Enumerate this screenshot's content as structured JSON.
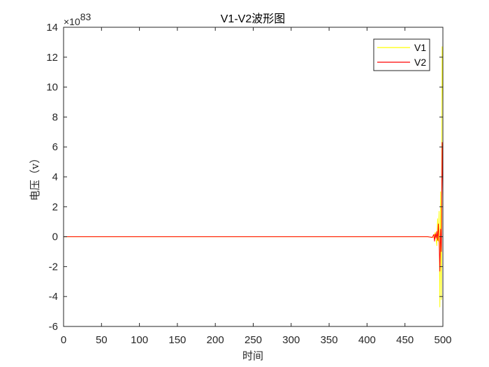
{
  "chart_data": {
    "type": "line",
    "title": "V1-V2波形图",
    "xlabel": "时间",
    "ylabel": "电压（v）",
    "exponent_prefix": "×10",
    "exponent_power": "83",
    "xlim": [
      0,
      500
    ],
    "ylim": [
      -6,
      14
    ],
    "xticks": [
      0,
      50,
      100,
      150,
      200,
      250,
      300,
      350,
      400,
      450,
      500
    ],
    "yticks": [
      -6,
      -4,
      -2,
      0,
      2,
      4,
      6,
      8,
      10,
      12,
      14
    ],
    "legend_position": "top-right",
    "series": [
      {
        "name": "V1",
        "color": "#FFFF00",
        "x": [
          0,
          480,
          488,
          490,
          492,
          493,
          494,
          495,
          496,
          497,
          498,
          499,
          500
        ],
        "y": [
          0,
          0,
          -0.05,
          0.3,
          -0.6,
          1.2,
          -0.3,
          1.7,
          -4.7,
          3.0,
          -4.2,
          12.7,
          8.8
        ]
      },
      {
        "name": "V2",
        "color": "#FF0000",
        "x": [
          0,
          480,
          486,
          488,
          489,
          490,
          491,
          492,
          493,
          494,
          495,
          496,
          497,
          498,
          499,
          500
        ],
        "y": [
          0,
          0,
          -0.05,
          0.15,
          -0.3,
          0.2,
          -0.1,
          0.35,
          -0.25,
          0.85,
          -0.2,
          -2.3,
          0.5,
          -1.0,
          6.3,
          2.6
        ]
      }
    ]
  }
}
